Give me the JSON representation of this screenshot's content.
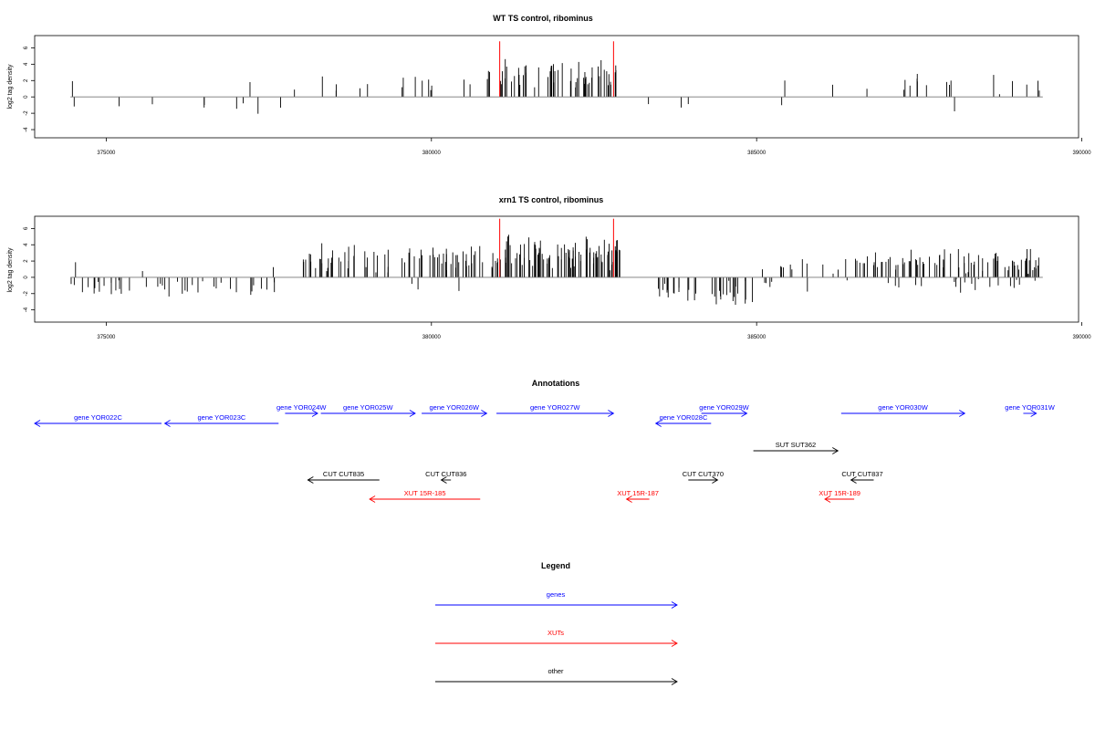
{
  "colors": {
    "gene": "#0000ff",
    "xut": "#ff0000",
    "other": "#000000",
    "marker": "#ff0000",
    "axis": "#000000",
    "bars": "#000000"
  },
  "chart_data": [
    {
      "type": "bar",
      "title": "WT TS control, ribominus",
      "ylabel": "log2 tag density",
      "xlim": [
        373900,
        389950
      ],
      "ylim": [
        -5,
        7.5
      ],
      "xticks": [
        "375000",
        "380000",
        "385000",
        "390000"
      ],
      "xtick_values": [
        375000,
        380000,
        385000,
        390000
      ],
      "yticks": [
        "6",
        "4",
        "2",
        "0",
        "-2",
        "-4"
      ],
      "ytick_values": [
        6,
        4,
        2,
        0,
        -2,
        -4
      ],
      "baseline": [
        374450,
        389400
      ],
      "markers_x": [
        381050,
        382800
      ],
      "marker_top": 6.8,
      "positive_regions": [
        {
          "start": 374480,
          "end": 374520,
          "density": 0.05,
          "mean": 1.9,
          "spread": 0.1
        },
        {
          "start": 377200,
          "end": 377250,
          "density": 0.05,
          "mean": 1.8,
          "spread": 0.1
        },
        {
          "start": 377800,
          "end": 377900,
          "density": 0.02,
          "mean": 0.8,
          "spread": 0.3
        },
        {
          "start": 378300,
          "end": 379300,
          "density": 0.05,
          "mean": 1.6,
          "spread": 1.0
        },
        {
          "start": 379300,
          "end": 380450,
          "density": 0.06,
          "mean": 1.9,
          "spread": 1.2
        },
        {
          "start": 380450,
          "end": 381050,
          "density": 0.08,
          "mean": 2.2,
          "spread": 1.3
        },
        {
          "start": 381050,
          "end": 382900,
          "density": 0.3,
          "mean": 2.8,
          "spread": 1.5
        },
        {
          "start": 385400,
          "end": 385500,
          "density": 0.03,
          "mean": 2.0,
          "spread": 0.8
        },
        {
          "start": 386100,
          "end": 386200,
          "density": 0.01,
          "mean": 1.5,
          "spread": 0.3
        },
        {
          "start": 386600,
          "end": 389400,
          "density": 0.06,
          "mean": 1.6,
          "spread": 1.0
        }
      ],
      "negative_regions": [
        {
          "start": 374450,
          "end": 374600,
          "density": 0.03,
          "mean": 1.5,
          "spread": 0.7
        },
        {
          "start": 374900,
          "end": 375200,
          "density": 0.02,
          "mean": 1.0,
          "spread": 0.5
        },
        {
          "start": 375500,
          "end": 375900,
          "density": 0.02,
          "mean": 1.0,
          "spread": 0.5
        },
        {
          "start": 376100,
          "end": 376700,
          "density": 0.03,
          "mean": 1.1,
          "spread": 0.5
        },
        {
          "start": 376800,
          "end": 377300,
          "density": 0.03,
          "mean": 1.2,
          "spread": 0.5
        },
        {
          "start": 377300,
          "end": 377750,
          "density": 0.04,
          "mean": 2.0,
          "spread": 1.0
        },
        {
          "start": 383300,
          "end": 383350,
          "density": 0.02,
          "mean": 1.0,
          "spread": 0.2
        },
        {
          "start": 383800,
          "end": 384500,
          "density": 0.03,
          "mean": 1.0,
          "spread": 0.5
        },
        {
          "start": 385200,
          "end": 385400,
          "density": 0.03,
          "mean": 1.5,
          "spread": 0.8
        },
        {
          "start": 387900,
          "end": 389000,
          "density": 0.01,
          "mean": 1.8,
          "spread": 0.6
        }
      ]
    },
    {
      "type": "bar",
      "title": "xrn1 TS control, ribominus",
      "ylabel": "log2 tag density",
      "xlim": [
        373900,
        389950
      ],
      "ylim": [
        -5.5,
        7.5
      ],
      "xticks": [
        "375000",
        "380000",
        "385000",
        "390000"
      ],
      "xtick_values": [
        375000,
        380000,
        385000,
        390000
      ],
      "yticks": [
        "6",
        "4",
        "2",
        "0",
        "-2",
        "-4"
      ],
      "ytick_values": [
        6,
        4,
        2,
        0,
        -2,
        -4
      ],
      "baseline": [
        374450,
        389400
      ],
      "markers_x": [
        381050,
        382800
      ],
      "marker_top": 7.2,
      "positive_regions": [
        {
          "start": 374450,
          "end": 374650,
          "density": 0.05,
          "mean": 1.5,
          "spread": 0.8
        },
        {
          "start": 375400,
          "end": 375700,
          "density": 0.03,
          "mean": 1.2,
          "spread": 0.6
        },
        {
          "start": 377500,
          "end": 377700,
          "density": 0.03,
          "mean": 1.0,
          "spread": 0.5
        },
        {
          "start": 378000,
          "end": 380450,
          "density": 0.25,
          "mean": 2.4,
          "spread": 1.6
        },
        {
          "start": 380450,
          "end": 381050,
          "density": 0.3,
          "mean": 2.7,
          "spread": 1.7
        },
        {
          "start": 381050,
          "end": 382900,
          "density": 0.5,
          "mean": 3.0,
          "spread": 1.8
        },
        {
          "start": 385050,
          "end": 385150,
          "density": 0.03,
          "mean": 0.9,
          "spread": 0.5
        },
        {
          "start": 385300,
          "end": 386700,
          "density": 0.12,
          "mean": 1.5,
          "spread": 1.0
        },
        {
          "start": 386700,
          "end": 389400,
          "density": 0.3,
          "mean": 2.0,
          "spread": 1.3
        }
      ],
      "negative_regions": [
        {
          "start": 374450,
          "end": 377900,
          "density": 0.12,
          "mean": 1.5,
          "spread": 1.0
        },
        {
          "start": 379500,
          "end": 380500,
          "density": 0.03,
          "mean": 0.9,
          "spread": 0.7
        },
        {
          "start": 383400,
          "end": 384950,
          "density": 0.22,
          "mean": 2.0,
          "spread": 1.2
        },
        {
          "start": 385100,
          "end": 389400,
          "density": 0.06,
          "mean": 1.0,
          "spread": 0.8
        }
      ]
    }
  ],
  "annotations": {
    "title": "Annotations",
    "xlim": [
      373900,
      389950
    ],
    "features": [
      {
        "label": "gene YOR022C",
        "type": "gene",
        "start": 373900,
        "end": 375850,
        "dir": "left",
        "row": 2
      },
      {
        "label": "gene YOR023C",
        "type": "gene",
        "start": 375900,
        "end": 377650,
        "dir": "left",
        "row": 2
      },
      {
        "label": "gene YOR024W",
        "type": "gene",
        "start": 377750,
        "end": 378250,
        "dir": "right",
        "row": 1
      },
      {
        "label": "gene YOR025W",
        "type": "gene",
        "start": 378300,
        "end": 379750,
        "dir": "right",
        "row": 1
      },
      {
        "label": "gene YOR026W",
        "type": "gene",
        "start": 379850,
        "end": 380850,
        "dir": "right",
        "row": 1
      },
      {
        "label": "gene YOR027W",
        "type": "gene",
        "start": 381000,
        "end": 382800,
        "dir": "right",
        "row": 1
      },
      {
        "label": "gene YOR028C",
        "type": "gene",
        "start": 383450,
        "end": 384300,
        "dir": "left",
        "row": 2
      },
      {
        "label": "gene YOR029W",
        "type": "gene",
        "start": 384150,
        "end": 384850,
        "dir": "right",
        "row": 1
      },
      {
        "label": "gene YOR030W",
        "type": "gene",
        "start": 386300,
        "end": 388200,
        "dir": "right",
        "row": 1
      },
      {
        "label": "gene YOR031W",
        "type": "gene",
        "start": 389100,
        "end": 389300,
        "dir": "right",
        "row": 1
      },
      {
        "label": "SUT SUT362",
        "type": "other",
        "start": 384950,
        "end": 386250,
        "dir": "right",
        "row": 3
      },
      {
        "label": "CUT CUT835",
        "type": "other",
        "start": 378100,
        "end": 379200,
        "dir": "left",
        "row": 4
      },
      {
        "label": "CUT CUT836",
        "type": "other",
        "start": 380150,
        "end": 380300,
        "dir": "left",
        "row": 4
      },
      {
        "label": "CUT CUT370",
        "type": "other",
        "start": 383950,
        "end": 384400,
        "dir": "right",
        "row": 4
      },
      {
        "label": "CUT CUT837",
        "type": "other",
        "start": 386450,
        "end": 386800,
        "dir": "left",
        "row": 4
      },
      {
        "label": "XUT 15R-185",
        "type": "xut",
        "start": 379050,
        "end": 380750,
        "dir": "left",
        "row": 5
      },
      {
        "label": "XUT 15R-187",
        "type": "xut",
        "start": 383000,
        "end": 383350,
        "dir": "left",
        "row": 5
      },
      {
        "label": "XUT 15R-189",
        "type": "xut",
        "start": 386050,
        "end": 386500,
        "dir": "left",
        "row": 5
      }
    ]
  },
  "legend": {
    "title": "Legend",
    "items": [
      {
        "label": "genes",
        "type": "gene"
      },
      {
        "label": "XUTs",
        "type": "xut"
      },
      {
        "label": "other",
        "type": "other"
      }
    ]
  }
}
